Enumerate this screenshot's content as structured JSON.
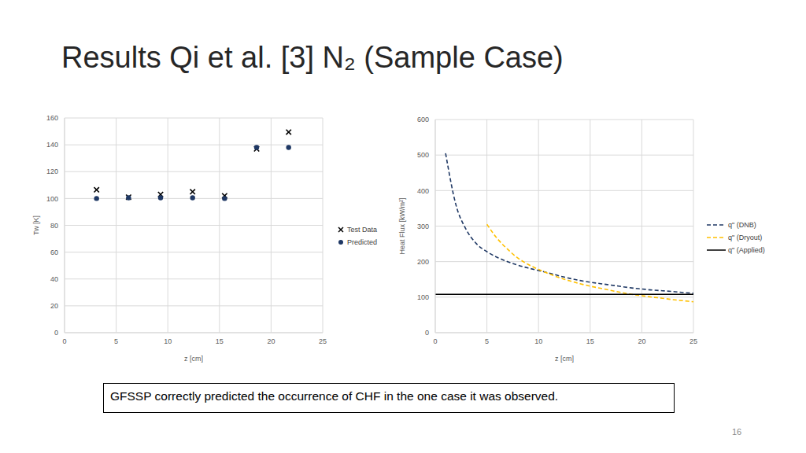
{
  "title": "Results Qi et al. [3] N₂ (Sample Case)",
  "caption": "GFSSP correctly predicted the occurrence of CHF in the one case it was observed.",
  "page_number": 16,
  "chart_data": [
    {
      "type": "scatter",
      "x_label": "z [cm]",
      "y_label": "Tw [K]",
      "xlim": [
        0,
        25
      ],
      "xticks": [
        0,
        5,
        10,
        15,
        20,
        25
      ],
      "ylim": [
        0,
        160
      ],
      "yticks": [
        0,
        20,
        40,
        60,
        80,
        100,
        120,
        140,
        160
      ],
      "grid": true,
      "legend": "right",
      "series": [
        {
          "name": "Test Data",
          "color": "#000000",
          "marker": "x",
          "x": [
            3.1,
            6.2,
            9.3,
            12.4,
            15.5,
            18.6,
            21.7
          ],
          "values": [
            106.5,
            101,
            103,
            105,
            102,
            137,
            149.5
          ]
        },
        {
          "name": "Predicted",
          "color": "#1f3864",
          "marker": "circle",
          "x": [
            3.1,
            6.2,
            9.3,
            12.4,
            15.5,
            18.6,
            21.7
          ],
          "values": [
            100,
            100.5,
            100.5,
            100.5,
            100,
            138,
            138
          ]
        }
      ]
    },
    {
      "type": "line",
      "x_label": "z [cm]",
      "y_label": "Heat Flux [kW/m²]",
      "xlim": [
        0,
        25
      ],
      "xticks": [
        0,
        5,
        10,
        15,
        20,
        25
      ],
      "ylim": [
        0,
        600
      ],
      "yticks": [
        0,
        100,
        200,
        300,
        400,
        500,
        600
      ],
      "grid": true,
      "legend": "right",
      "series": [
        {
          "name": "q\" (DNB)",
          "color": "#1f3864",
          "line_style": "dashed",
          "x": [
            1,
            2,
            3,
            4,
            5,
            6,
            7,
            8,
            9,
            10,
            11,
            12,
            13,
            14,
            15,
            16,
            17,
            18,
            19,
            20,
            21,
            22,
            23,
            24,
            25
          ],
          "values": [
            505,
            360,
            290,
            250,
            228,
            212,
            200,
            190,
            182,
            175,
            168,
            160,
            153,
            147,
            142,
            138,
            134,
            130,
            126,
            123,
            120,
            118,
            116,
            113,
            111
          ]
        },
        {
          "name": "q\" (Dryout)",
          "color": "#ffc000",
          "line_style": "dashed",
          "x": [
            5,
            6,
            7,
            8,
            9,
            10,
            11,
            12,
            13,
            14,
            15,
            16,
            17,
            18,
            19,
            20,
            21,
            22,
            23,
            24,
            25
          ],
          "values": [
            305,
            265,
            235,
            210,
            192,
            178,
            166,
            155,
            146,
            138,
            131,
            125,
            119,
            113,
            108,
            104,
            100,
            97,
            93,
            90,
            87
          ]
        },
        {
          "name": "q\" (Applied)",
          "color": "#000000",
          "line_style": "solid",
          "x": [
            0,
            25
          ],
          "values": [
            108,
            108
          ]
        }
      ]
    }
  ]
}
